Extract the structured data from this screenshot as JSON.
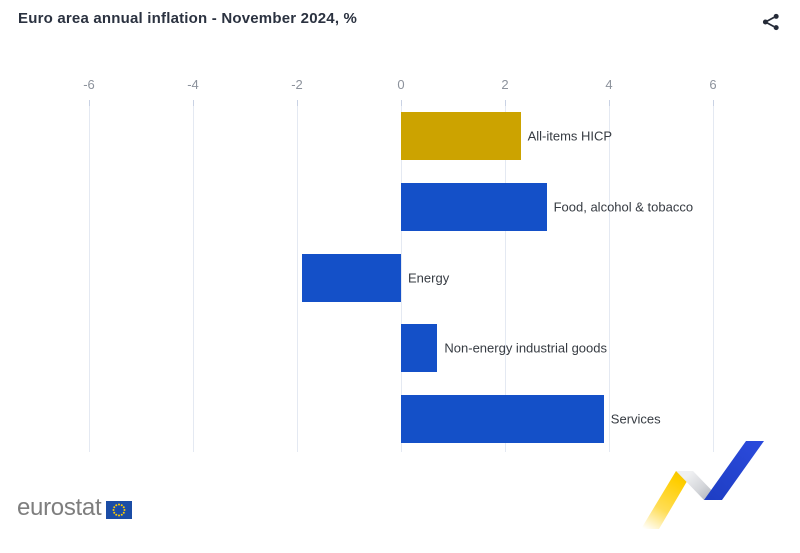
{
  "header": {
    "title": "Euro area annual inflation - November 2024, %"
  },
  "chart_data": {
    "type": "bar",
    "orientation": "horizontal",
    "title": "Euro area annual inflation - November 2024, %",
    "unit": "%",
    "xlabel": "",
    "ylabel": "",
    "xlim": [
      -6,
      6
    ],
    "x_ticks": [
      "-6",
      "-4",
      "-2",
      "0",
      "2",
      "4",
      "6"
    ],
    "grid": true,
    "legend": "none",
    "categories": [
      "All-items HICP",
      "Food, alcohol & tobacco",
      "Energy",
      "Non-energy industrial goods",
      "Services"
    ],
    "values": [
      2.3,
      2.8,
      -1.9,
      0.7,
      3.9
    ],
    "bar_colors": [
      "#CCA300",
      "#1450C8",
      "#1450C8",
      "#1450C8",
      "#1450C8"
    ],
    "highlight_color": "#CCA300",
    "series_color": "#1450C8"
  },
  "footer": {
    "logo_text": "eurostat"
  },
  "colors": {
    "title_text": "#2B3240",
    "tick_label": "#8C929C",
    "gridline": "#E4E9F2",
    "category_label": "#363B42",
    "share_icon": "#252B38",
    "logo_text": "#7E7E7E",
    "flag_blue": "#1B4DA6",
    "flag_stars": "#FFCC00",
    "ribbon_yellow": "#FFCE00",
    "ribbon_gray": "#A9ADB6",
    "ribbon_blue": "#2648D6"
  }
}
